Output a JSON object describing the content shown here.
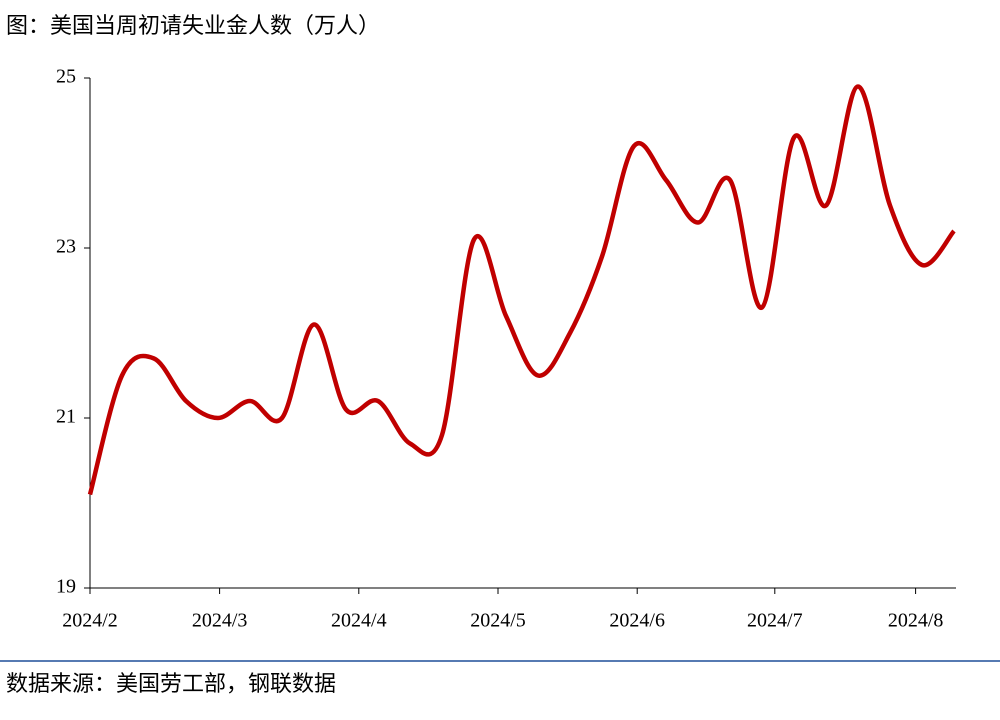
{
  "chart_data": {
    "type": "line",
    "title": "图：美国当周初请失业金人数（万人）",
    "source": "数据来源：美国劳工部，钢联数据",
    "x": [
      0,
      1,
      2,
      3,
      4,
      5,
      6,
      7,
      8,
      9,
      10,
      11,
      12,
      13,
      14,
      15,
      16,
      17,
      18,
      19,
      20,
      21,
      22,
      23,
      24,
      25,
      26,
      27
    ],
    "series": [
      {
        "name": "美国当周初请失业金人数",
        "color": "#c00000",
        "values": [
          20.1,
          21.5,
          21.7,
          21.2,
          21.0,
          21.2,
          21.0,
          22.1,
          21.1,
          21.2,
          20.7,
          20.8,
          23.1,
          22.2,
          21.5,
          22.0,
          22.9,
          24.2,
          23.8,
          23.3,
          23.8,
          22.3,
          24.3,
          23.5,
          24.9,
          23.5,
          22.8,
          23.2
        ]
      }
    ],
    "xlim": [
      0,
      27
    ],
    "xticks": [
      {
        "value": 0,
        "label": "2024/2"
      },
      {
        "value": 4.05,
        "label": "2024/3"
      },
      {
        "value": 8.4,
        "label": "2024/4"
      },
      {
        "value": 12.75,
        "label": "2024/5"
      },
      {
        "value": 17.1,
        "label": "2024/6"
      },
      {
        "value": 21.4,
        "label": "2024/7"
      },
      {
        "value": 25.8,
        "label": "2024/8"
      }
    ],
    "ylim": [
      19,
      25
    ],
    "yticks": [
      19,
      21,
      23,
      25
    ]
  }
}
